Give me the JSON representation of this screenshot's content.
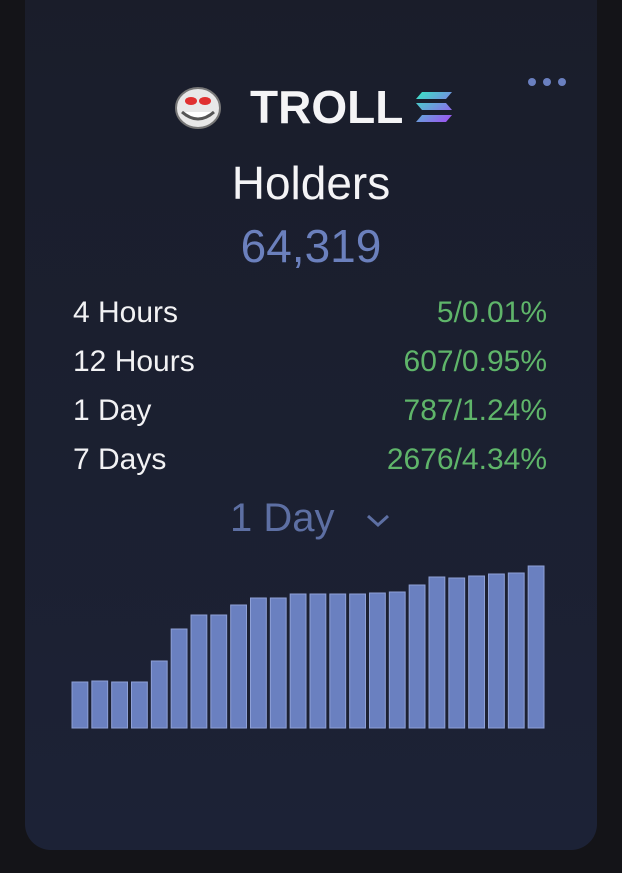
{
  "header": {
    "token": "TROLL"
  },
  "panel": {
    "title": "Holders",
    "total": "64,319",
    "stats": [
      {
        "label": "4 Hours",
        "value": "5/0.01%"
      },
      {
        "label": "12 Hours",
        "value": "607/0.95%"
      },
      {
        "label": "1 Day",
        "value": "787/1.24%"
      },
      {
        "label": "7 Days",
        "value": "2676/4.34%"
      }
    ],
    "period": "1 Day"
  },
  "chart_data": {
    "type": "bar",
    "color": "#6a80c0",
    "values": [
      46,
      47,
      46,
      46,
      67,
      99,
      113,
      113,
      123,
      130,
      130,
      134,
      134,
      134,
      134,
      135,
      136,
      143,
      151,
      150,
      152,
      154,
      155,
      162
    ]
  }
}
